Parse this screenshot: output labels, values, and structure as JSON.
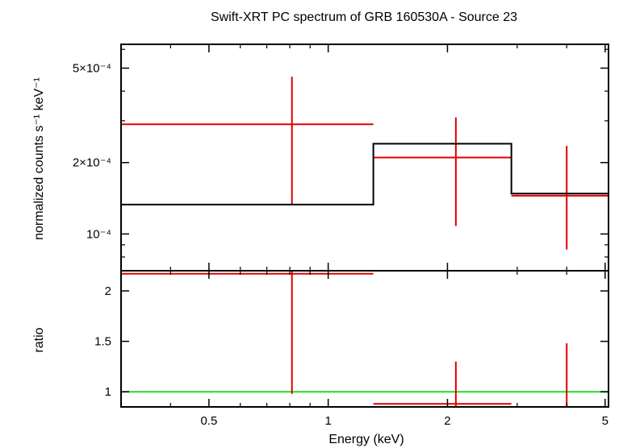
{
  "chart_data": {
    "type": "step",
    "title": "Swift-XRT PC spectrum of GRB 160530A - Source 23",
    "xlabel": "Energy (keV)",
    "x_scale": "log",
    "xlim": [
      0.3,
      5.1
    ],
    "x_ticks": [
      {
        "value": 0.5,
        "label": "0.5"
      },
      {
        "value": 1,
        "label": "1"
      },
      {
        "value": 2,
        "label": "2"
      },
      {
        "value": 5,
        "label": "5"
      }
    ],
    "x_minor_ticks": [
      0.3,
      0.4,
      0.6,
      0.7,
      0.8,
      0.9,
      3,
      4
    ],
    "panels": [
      {
        "name": "spectrum",
        "ylabel": "normalized counts s⁻¹ keV⁻¹",
        "y_scale": "log",
        "ylim": [
          7e-05,
          0.00063
        ],
        "y_ticks": [
          {
            "value": 0.0001,
            "label": "10⁻⁴"
          },
          {
            "value": 0.0002,
            "label": "2×10⁻⁴"
          },
          {
            "value": 0.0005,
            "label": "5×10⁻⁴"
          }
        ],
        "y_minor_ticks": [
          8e-05,
          9e-05,
          0.0003,
          0.0004,
          0.0006
        ],
        "series": [
          {
            "role": "data",
            "color": "#e00000",
            "points": [
              {
                "x": 0.81,
                "xlo": 0.3,
                "xhi": 1.3,
                "y": 0.00029,
                "ylo": 0.000132,
                "yhi": 0.00046
              },
              {
                "x": 2.1,
                "xlo": 1.3,
                "xhi": 2.9,
                "y": 0.00021,
                "ylo": 0.000108,
                "yhi": 0.00031
              },
              {
                "x": 4.0,
                "xlo": 2.9,
                "xhi": 5.1,
                "y": 0.000145,
                "ylo": 8.6e-05,
                "yhi": 0.000235
              }
            ]
          },
          {
            "role": "model",
            "color": "#000000",
            "steps": [
              {
                "xlo": 0.3,
                "xhi": 1.3,
                "y": 0.000133
              },
              {
                "xlo": 1.3,
                "xhi": 2.9,
                "y": 0.00024
              },
              {
                "xlo": 2.9,
                "xhi": 5.1,
                "y": 0.000148
              }
            ]
          }
        ]
      },
      {
        "name": "ratio",
        "ylabel": "ratio",
        "y_scale": "linear",
        "ylim": [
          0.85,
          2.2
        ],
        "y_ticks": [
          {
            "value": 1,
            "label": "1"
          },
          {
            "value": 1.5,
            "label": "1.5"
          },
          {
            "value": 2,
            "label": "2"
          }
        ],
        "reference_line": {
          "y": 1,
          "color": "#22dd22"
        },
        "series": [
          {
            "role": "ratio",
            "color": "#e00000",
            "points": [
              {
                "x": 0.81,
                "xlo": 0.3,
                "xhi": 1.3,
                "y": 2.17,
                "ylo": 0.98,
                "yhi": 2.2
              },
              {
                "x": 2.1,
                "xlo": 1.3,
                "xhi": 2.9,
                "y": 0.88,
                "ylo": 0.85,
                "yhi": 1.3
              },
              {
                "x": 4.0,
                "xlo": 2.9,
                "xhi": 5.1,
                "y": 0.85,
                "ylo": 0.85,
                "yhi": 1.48
              }
            ]
          }
        ]
      }
    ]
  }
}
